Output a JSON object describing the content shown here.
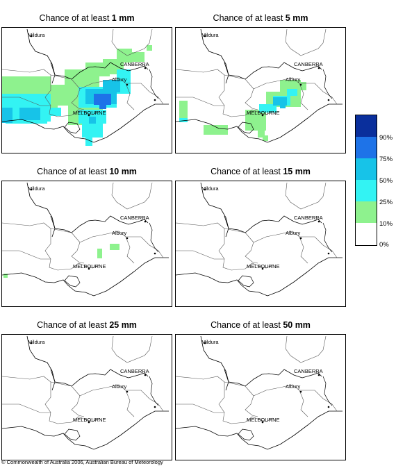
{
  "panels": [
    {
      "title_prefix": "Chance of at least ",
      "amount": "1 mm"
    },
    {
      "title_prefix": "Chance of at least ",
      "amount": "5 mm"
    },
    {
      "title_prefix": "Chance of at least ",
      "amount": "10 mm"
    },
    {
      "title_prefix": "Chance of at least ",
      "amount": "15 mm"
    },
    {
      "title_prefix": "Chance of at least ",
      "amount": "25 mm"
    },
    {
      "title_prefix": "Chance of at least ",
      "amount": "50 mm"
    }
  ],
  "place_labels": {
    "mildura": "Mildura",
    "canberra": "CANBERRA",
    "albury": "Albury",
    "melbourne": "MELBOURNE"
  },
  "legend": {
    "ticks": [
      "90%",
      "75%",
      "50%",
      "25%",
      "10%",
      "0%"
    ],
    "colors": [
      "#0a2f9c",
      "#1e73e8",
      "#17c3e8",
      "#33f3f3",
      "#8ef28e",
      "#ffffff"
    ]
  },
  "copyright": "© Commonwealth of Australia 2006, Australian Bureau of Meteorology"
}
